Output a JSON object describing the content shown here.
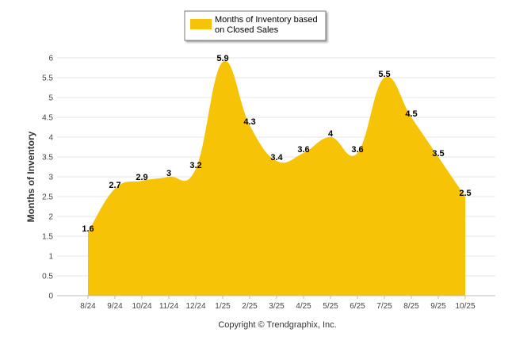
{
  "chart_data": {
    "type": "area",
    "categories": [
      "8/24",
      "9/24",
      "10/24",
      "11/24",
      "12/24",
      "1/25",
      "2/25",
      "3/25",
      "4/25",
      "5/25",
      "6/25",
      "7/25",
      "8/25",
      "9/25",
      "10/25"
    ],
    "series": [
      {
        "name": "Months of Inventory based on Closed Sales",
        "values": [
          1.6,
          2.7,
          2.9,
          3,
          3.2,
          5.9,
          4.3,
          3.4,
          3.6,
          4,
          3.6,
          5.5,
          4.5,
          3.5,
          2.5
        ]
      }
    ],
    "data_labels": [
      "1.6",
      "2.7",
      "2.9",
      "3",
      "3.2",
      "5.9",
      "4.3",
      "3.4",
      "3.6",
      "4",
      "3.6",
      "5.5",
      "4.5",
      "3.5",
      "2.5"
    ],
    "ylabel": "Months of Inventory",
    "xlabel": "",
    "ylim": [
      0,
      6
    ],
    "yticks": [
      "0",
      "0.5",
      "1",
      "1.5",
      "2",
      "2.5",
      "3",
      "3.5",
      "4",
      "4.5",
      "5",
      "5.5",
      "6"
    ],
    "grid": true,
    "legend_position": "top-center",
    "legend_lines": [
      "Months of Inventory based",
      "on Closed Sales"
    ],
    "fill_color": "#F7C306",
    "copyright": "Copyright © Trendgraphix, Inc."
  }
}
